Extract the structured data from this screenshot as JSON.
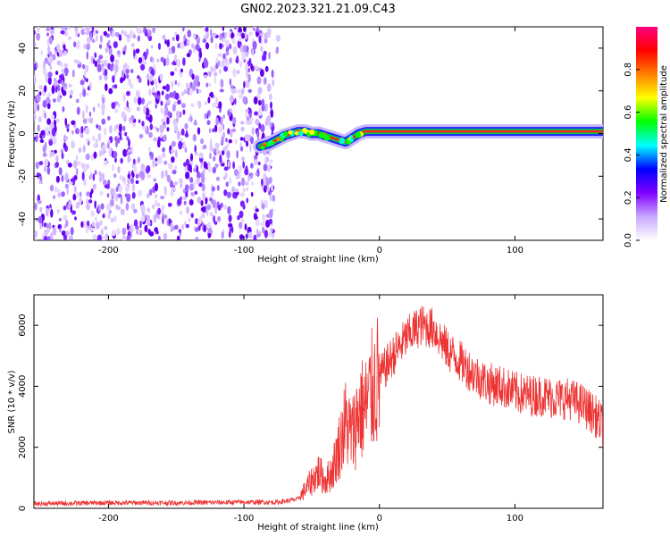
{
  "title": "GN02.2023.321.21.09.C43",
  "chart_data": [
    {
      "type": "heatmap",
      "xlabel": "Height of straight line (km)",
      "ylabel": "Frequency (Hz)",
      "xlim": [
        -255,
        165
      ],
      "ylim": [
        -50,
        50
      ],
      "xticks": [
        -200,
        -100,
        0,
        100
      ],
      "yticks": [
        -40,
        -20,
        0,
        20,
        40
      ],
      "colorbar": {
        "label": "Normalized spectral amplitude",
        "range": [
          0,
          1
        ],
        "ticks": [
          "0.0",
          "0.2",
          "0.4",
          "0.6",
          "0.8"
        ],
        "colors": [
          "#ffffff",
          "#c8a8ff",
          "#8000ff",
          "#0000ff",
          "#00ffff",
          "#00ff00",
          "#ffff00",
          "#ff8000",
          "#ff0000",
          "#ff0080"
        ]
      },
      "noise_region_x": [
        -255,
        -78
      ],
      "signal_trace": {
        "x": [
          -88,
          -82,
          -76,
          -70,
          -65,
          -60,
          -55,
          -50,
          -45,
          -40,
          -35,
          -30,
          -25,
          -20,
          -15,
          -10,
          0,
          50,
          100,
          165
        ],
        "y": [
          -6,
          -5,
          -3,
          -1,
          0,
          1,
          1,
          0,
          0,
          -1,
          -2,
          -3,
          -4,
          -2,
          0,
          1,
          1,
          1,
          1,
          1
        ]
      }
    },
    {
      "type": "line",
      "xlabel": "Height of straight line (km)",
      "ylabel": "SNR (10 * v/v)",
      "xlim": [
        -255,
        165
      ],
      "ylim": [
        0,
        7000
      ],
      "xticks": [
        -200,
        -100,
        0,
        100
      ],
      "yticks": [
        0,
        2000,
        4000,
        6000
      ],
      "series": [
        {
          "color": "#ee3333",
          "x": [
            -255,
            -200,
            -150,
            -100,
            -75,
            -60,
            -50,
            -45,
            -40,
            -35,
            -30,
            -25,
            -20,
            -15,
            -10,
            -5,
            0,
            10,
            20,
            30,
            40,
            50,
            60,
            70,
            80,
            90,
            100,
            110,
            120,
            130,
            140,
            150,
            160,
            165
          ],
          "y": [
            150,
            180,
            180,
            200,
            200,
            300,
            900,
            1200,
            900,
            1200,
            2000,
            2800,
            2400,
            3200,
            3300,
            3900,
            4300,
            5000,
            5600,
            6000,
            5900,
            5200,
            4800,
            4400,
            4100,
            4000,
            3800,
            3700,
            3700,
            3600,
            3600,
            3400,
            3000,
            2700
          ]
        }
      ]
    }
  ]
}
